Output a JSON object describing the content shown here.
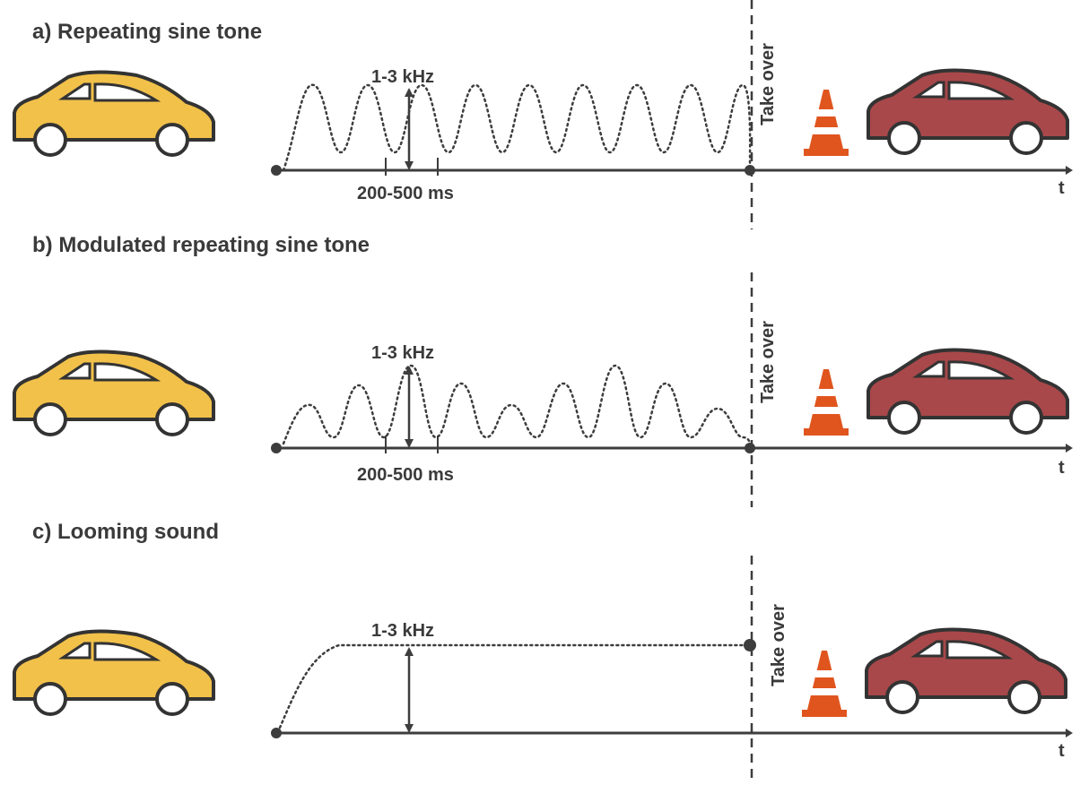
{
  "colors": {
    "line": "#3d3d3d",
    "car_yellow": "#f2c14a",
    "car_red": "#a8484a",
    "car_outline": "#333333",
    "window_fill": "#ffffff",
    "cone_orange": "#e0551e",
    "cone_white": "#ffffff"
  },
  "panels": [
    {
      "title": "a) Repeating sine tone",
      "freq_label": "1-3 kHz",
      "interval_label": "200-500 ms",
      "takeover_label": "Take over",
      "axis_label": "t",
      "icons": {
        "left": "yellow-car-icon",
        "obstacle": "traffic-cone-icon",
        "right": "red-car-icon"
      }
    },
    {
      "title": "b) Modulated repeating sine tone",
      "freq_label": "1-3 kHz",
      "interval_label": "200-500 ms",
      "takeover_label": "Take over",
      "axis_label": "t",
      "icons": {
        "left": "yellow-car-icon",
        "obstacle": "traffic-cone-icon",
        "right": "red-car-icon"
      }
    },
    {
      "title": "c) Looming sound",
      "freq_label": "1-3 kHz",
      "takeover_label": "Take over",
      "axis_label": "t",
      "icons": {
        "left": "yellow-car-icon",
        "obstacle": "traffic-cone-icon",
        "right": "red-car-icon"
      }
    }
  ]
}
